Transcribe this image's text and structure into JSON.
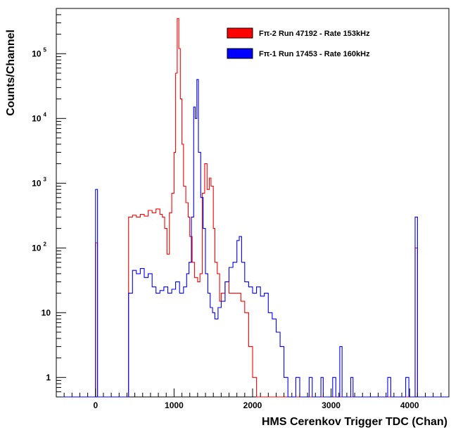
{
  "chart_data": {
    "type": "line",
    "title": "",
    "xlabel": "HMS Cerenkov Trigger TDC (Chan)",
    "ylabel": "Counts/Channel",
    "xlim": [
      -500,
      4500
    ],
    "ylim": [
      0.5,
      500000
    ],
    "yscale": "log",
    "grid": false,
    "legend_position": "top-right",
    "x_ticks": [
      0,
      1000,
      2000,
      3000,
      4000
    ],
    "x_tick_labels": [
      "0",
      "1000",
      "2000",
      "3000",
      "4000"
    ],
    "y_ticks": [
      {
        "value": 1,
        "base": "1",
        "exp": ""
      },
      {
        "value": 10,
        "base": "10",
        "exp": ""
      },
      {
        "value": 100,
        "base": "10",
        "exp": "2"
      },
      {
        "value": 1000,
        "base": "10",
        "exp": "3"
      },
      {
        "value": 10000,
        "base": "10",
        "exp": "4"
      },
      {
        "value": 100000,
        "base": "10",
        "exp": "5"
      }
    ],
    "series": [
      {
        "name": "Fπ-2 Run 47192 - Rate 153kHz",
        "color": "#ff0000",
        "points": [
          [
            -500,
            0.5
          ],
          [
            0,
            0.5
          ],
          [
            0,
            120
          ],
          [
            25,
            120
          ],
          [
            25,
            0.5
          ],
          [
            420,
            0.5
          ],
          [
            420,
            300
          ],
          [
            470,
            320
          ],
          [
            520,
            300
          ],
          [
            570,
            330
          ],
          [
            620,
            310
          ],
          [
            670,
            380
          ],
          [
            720,
            350
          ],
          [
            770,
            400
          ],
          [
            820,
            330
          ],
          [
            850,
            300
          ],
          [
            880,
            200
          ],
          [
            910,
            80
          ],
          [
            940,
            350
          ],
          [
            970,
            700
          ],
          [
            1000,
            3000
          ],
          [
            1020,
            50000
          ],
          [
            1040,
            350000
          ],
          [
            1060,
            120000
          ],
          [
            1080,
            20000
          ],
          [
            1100,
            4000
          ],
          [
            1120,
            900
          ],
          [
            1150,
            500
          ],
          [
            1180,
            300
          ],
          [
            1200,
            150
          ],
          [
            1230,
            60
          ],
          [
            1260,
            35
          ],
          [
            1300,
            30
          ],
          [
            1330,
            40
          ],
          [
            1360,
            700
          ],
          [
            1390,
            2000
          ],
          [
            1420,
            800
          ],
          [
            1450,
            1200
          ],
          [
            1470,
            900
          ],
          [
            1500,
            200
          ],
          [
            1520,
            60
          ],
          [
            1550,
            40
          ],
          [
            1580,
            15
          ],
          [
            1600,
            20
          ],
          [
            1650,
            30
          ],
          [
            1700,
            20
          ],
          [
            1750,
            20
          ],
          [
            1800,
            20
          ],
          [
            1850,
            15
          ],
          [
            1900,
            10
          ],
          [
            1950,
            3
          ],
          [
            2000,
            1
          ],
          [
            2050,
            0.5
          ],
          [
            2100,
            0.5
          ],
          [
            4070,
            0.5
          ],
          [
            4070,
            100
          ],
          [
            4100,
            100
          ],
          [
            4100,
            0.5
          ],
          [
            4500,
            0.5
          ]
        ]
      },
      {
        "name": "Fπ-1 Run 17453 - Rate 160kHz",
        "color": "#0000ff",
        "points": [
          [
            -500,
            0.5
          ],
          [
            0,
            0.5
          ],
          [
            0,
            800
          ],
          [
            25,
            800
          ],
          [
            25,
            0.5
          ],
          [
            420,
            0.5
          ],
          [
            420,
            20
          ],
          [
            470,
            45
          ],
          [
            520,
            40
          ],
          [
            570,
            48
          ],
          [
            620,
            35
          ],
          [
            670,
            40
          ],
          [
            720,
            25
          ],
          [
            770,
            20
          ],
          [
            820,
            22
          ],
          [
            870,
            25
          ],
          [
            920,
            20
          ],
          [
            970,
            23
          ],
          [
            1020,
            30
          ],
          [
            1070,
            20
          ],
          [
            1120,
            25
          ],
          [
            1160,
            40
          ],
          [
            1190,
            60
          ],
          [
            1220,
            300
          ],
          [
            1250,
            15000
          ],
          [
            1270,
            10000
          ],
          [
            1290,
            40000
          ],
          [
            1310,
            3000
          ],
          [
            1340,
            600
          ],
          [
            1370,
            200
          ],
          [
            1400,
            40
          ],
          [
            1430,
            20
          ],
          [
            1460,
            12
          ],
          [
            1490,
            10
          ],
          [
            1520,
            8
          ],
          [
            1560,
            12
          ],
          [
            1600,
            15
          ],
          [
            1650,
            30
          ],
          [
            1700,
            50
          ],
          [
            1750,
            60
          ],
          [
            1800,
            130
          ],
          [
            1830,
            150
          ],
          [
            1860,
            60
          ],
          [
            1900,
            30
          ],
          [
            1950,
            25
          ],
          [
            2000,
            20
          ],
          [
            2050,
            25
          ],
          [
            2100,
            18
          ],
          [
            2150,
            20
          ],
          [
            2200,
            10
          ],
          [
            2250,
            8
          ],
          [
            2300,
            5
          ],
          [
            2350,
            3
          ],
          [
            2400,
            1
          ],
          [
            2450,
            0.5
          ],
          [
            2550,
            1
          ],
          [
            2600,
            0.5
          ],
          [
            2720,
            1
          ],
          [
            2760,
            0.5
          ],
          [
            2870,
            1
          ],
          [
            2900,
            0.5
          ],
          [
            3020,
            1
          ],
          [
            3060,
            0.5
          ],
          [
            3110,
            3
          ],
          [
            3140,
            0.5
          ],
          [
            3250,
            1
          ],
          [
            3280,
            0.5
          ],
          [
            3720,
            1
          ],
          [
            3760,
            0.5
          ],
          [
            3950,
            1
          ],
          [
            3990,
            0.5
          ],
          [
            4070,
            0.5
          ],
          [
            4070,
            300
          ],
          [
            4100,
            300
          ],
          [
            4100,
            0.5
          ],
          [
            4500,
            0.5
          ]
        ]
      }
    ]
  }
}
